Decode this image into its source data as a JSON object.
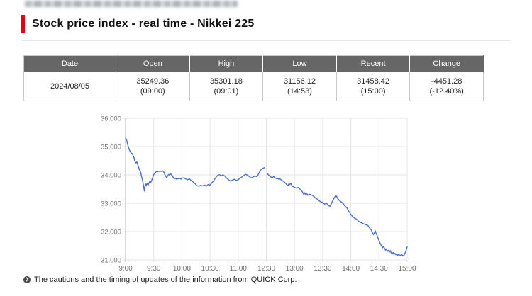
{
  "title": {
    "text": "Stock price index - real time - Nikkei 225",
    "accent_color": "#e60012"
  },
  "table": {
    "columns": [
      "Date",
      "Open",
      "High",
      "Low",
      "Recent",
      "Change"
    ],
    "row": {
      "date": "2024/08/05",
      "open": {
        "value": "35249.36",
        "time": "(09:00)"
      },
      "high": {
        "value": "35301.18",
        "time": "(09:01)"
      },
      "low": {
        "value": "31156.12",
        "time": "(14:53)"
      },
      "recent": {
        "value": "31458.42",
        "time": "(15:00)"
      },
      "change": {
        "value": "-4451.28",
        "pct": "(-12.40%)"
      }
    }
  },
  "chart_data": {
    "type": "line",
    "title": "",
    "xlabel": "",
    "ylabel": "",
    "ylim": [
      31000,
      36000
    ],
    "y_ticks": [
      "36,000",
      "35,000",
      "34,000",
      "33,000",
      "32,000",
      "31,000"
    ],
    "x_ticks": [
      "9:00",
      "9:30",
      "10:00",
      "10:30",
      "11:00",
      "12:30",
      "13:00",
      "13:30",
      "14:00",
      "14:30",
      "15:00"
    ],
    "x_range_minutes": [
      0,
      300
    ],
    "grid": true,
    "legend": "none",
    "line_color": "#4a6fc9",
    "note": "Trading-time axis; lunch break 11:30-12:30 is compressed at the 12:30 tick (gap in line)",
    "series": [
      {
        "name": "morning-session",
        "points": [
          [
            0,
            35290
          ],
          [
            1,
            35260
          ],
          [
            2,
            35120
          ],
          [
            3,
            34980
          ],
          [
            4,
            34890
          ],
          [
            5,
            34820
          ],
          [
            6,
            34780
          ],
          [
            7,
            34750
          ],
          [
            8,
            34690
          ],
          [
            9,
            34610
          ],
          [
            10,
            34480
          ],
          [
            11,
            34420
          ],
          [
            12,
            34460
          ],
          [
            13,
            34360
          ],
          [
            14,
            34270
          ],
          [
            15,
            34160
          ],
          [
            16,
            34100
          ],
          [
            17,
            33950
          ],
          [
            18,
            33820
          ],
          [
            19,
            33650
          ],
          [
            20,
            33430
          ],
          [
            21,
            33700
          ],
          [
            22,
            33610
          ],
          [
            23,
            33710
          ],
          [
            24,
            33640
          ],
          [
            25,
            33720
          ],
          [
            26,
            33780
          ],
          [
            27,
            33740
          ],
          [
            28,
            33830
          ],
          [
            29,
            33920
          ],
          [
            30,
            34010
          ],
          [
            31,
            34060
          ],
          [
            32,
            34090
          ],
          [
            33,
            34120
          ],
          [
            34,
            34110
          ],
          [
            35,
            34130
          ],
          [
            36,
            34120
          ],
          [
            37,
            34140
          ],
          [
            38,
            34120
          ],
          [
            39,
            34130
          ],
          [
            40,
            34140
          ],
          [
            41,
            34080
          ],
          [
            42,
            34000
          ],
          [
            43,
            33940
          ],
          [
            44,
            33900
          ],
          [
            45,
            33980
          ],
          [
            46,
            34020
          ],
          [
            47,
            33990
          ],
          [
            48,
            34040
          ],
          [
            49,
            34010
          ],
          [
            50,
            33950
          ],
          [
            51,
            33900
          ],
          [
            52,
            33860
          ],
          [
            53,
            33890
          ],
          [
            54,
            33850
          ],
          [
            55,
            33880
          ],
          [
            56,
            33860
          ],
          [
            57,
            33890
          ],
          [
            58,
            33870
          ],
          [
            59,
            33850
          ],
          [
            60,
            33880
          ],
          [
            62,
            33900
          ],
          [
            64,
            33860
          ],
          [
            66,
            33830
          ],
          [
            68,
            33860
          ],
          [
            70,
            33800
          ],
          [
            72,
            33750
          ],
          [
            74,
            33690
          ],
          [
            76,
            33620
          ],
          [
            78,
            33600
          ],
          [
            80,
            33630
          ],
          [
            82,
            33610
          ],
          [
            84,
            33640
          ],
          [
            86,
            33600
          ],
          [
            88,
            33660
          ],
          [
            90,
            33640
          ],
          [
            92,
            33720
          ],
          [
            94,
            33800
          ],
          [
            96,
            33900
          ],
          [
            98,
            33980
          ],
          [
            100,
            34010
          ],
          [
            102,
            33970
          ],
          [
            104,
            34000
          ],
          [
            106,
            33950
          ],
          [
            108,
            33880
          ],
          [
            110,
            33820
          ],
          [
            112,
            33780
          ],
          [
            114,
            33820
          ],
          [
            116,
            33850
          ],
          [
            118,
            33800
          ],
          [
            120,
            33830
          ],
          [
            122,
            33880
          ],
          [
            124,
            33930
          ],
          [
            126,
            33980
          ],
          [
            128,
            34020
          ],
          [
            130,
            33990
          ],
          [
            132,
            33940
          ],
          [
            134,
            33890
          ],
          [
            136,
            33930
          ],
          [
            138,
            33960
          ],
          [
            140,
            33940
          ],
          [
            141,
            33990
          ],
          [
            142,
            34060
          ],
          [
            143,
            34120
          ],
          [
            144,
            34170
          ],
          [
            145,
            34210
          ],
          [
            146,
            34230
          ],
          [
            147,
            34245
          ],
          [
            148,
            34255
          ]
        ]
      },
      {
        "name": "afternoon-session",
        "points": [
          [
            151,
            34050
          ],
          [
            152,
            34010
          ],
          [
            153,
            33980
          ],
          [
            154,
            33950
          ],
          [
            155,
            33920
          ],
          [
            156,
            33900
          ],
          [
            157,
            33920
          ],
          [
            158,
            33940
          ],
          [
            159,
            33900
          ],
          [
            160,
            33880
          ],
          [
            161,
            33860
          ],
          [
            162,
            33880
          ],
          [
            163,
            33850
          ],
          [
            164,
            33870
          ],
          [
            166,
            33820
          ],
          [
            168,
            33780
          ],
          [
            170,
            33720
          ],
          [
            172,
            33650
          ],
          [
            173,
            33620
          ],
          [
            174,
            33690
          ],
          [
            175,
            33660
          ],
          [
            176,
            33700
          ],
          [
            177,
            33640
          ],
          [
            178,
            33600
          ],
          [
            179,
            33580
          ],
          [
            180,
            33560
          ],
          [
            182,
            33530
          ],
          [
            184,
            33560
          ],
          [
            186,
            33490
          ],
          [
            188,
            33420
          ],
          [
            190,
            33310
          ],
          [
            191,
            33370
          ],
          [
            192,
            33300
          ],
          [
            193,
            33350
          ],
          [
            194,
            33280
          ],
          [
            196,
            33320
          ],
          [
            198,
            33290
          ],
          [
            200,
            33260
          ],
          [
            202,
            33190
          ],
          [
            204,
            33150
          ],
          [
            206,
            33090
          ],
          [
            208,
            33050
          ],
          [
            210,
            33030
          ],
          [
            212,
            32970
          ],
          [
            214,
            33010
          ],
          [
            216,
            32920
          ],
          [
            218,
            32890
          ],
          [
            220,
            33040
          ],
          [
            222,
            33170
          ],
          [
            224,
            33280
          ],
          [
            225,
            33230
          ],
          [
            226,
            33160
          ],
          [
            228,
            33090
          ],
          [
            230,
            33040
          ],
          [
            232,
            32980
          ],
          [
            234,
            32890
          ],
          [
            236,
            32830
          ],
          [
            238,
            32700
          ],
          [
            240,
            32610
          ],
          [
            242,
            32520
          ],
          [
            244,
            32470
          ],
          [
            246,
            32440
          ],
          [
            248,
            32370
          ],
          [
            250,
            32330
          ],
          [
            252,
            32300
          ],
          [
            254,
            32270
          ],
          [
            256,
            32240
          ],
          [
            258,
            32220
          ],
          [
            260,
            32130
          ],
          [
            262,
            32040
          ],
          [
            263,
            31960
          ],
          [
            264,
            31890
          ],
          [
            265,
            31940
          ],
          [
            266,
            32030
          ],
          [
            267,
            31930
          ],
          [
            268,
            31860
          ],
          [
            269,
            31760
          ],
          [
            270,
            31680
          ],
          [
            271,
            31600
          ],
          [
            272,
            31540
          ],
          [
            273,
            31470
          ],
          [
            274,
            31430
          ],
          [
            275,
            31480
          ],
          [
            276,
            31400
          ],
          [
            277,
            31340
          ],
          [
            278,
            31390
          ],
          [
            279,
            31300
          ],
          [
            280,
            31340
          ],
          [
            281,
            31270
          ],
          [
            282,
            31330
          ],
          [
            283,
            31250
          ],
          [
            284,
            31210
          ],
          [
            285,
            31260
          ],
          [
            286,
            31190
          ],
          [
            287,
            31230
          ],
          [
            288,
            31180
          ],
          [
            289,
            31210
          ],
          [
            290,
            31160
          ],
          [
            291,
            31200
          ],
          [
            292,
            31170
          ],
          [
            293,
            31156
          ],
          [
            294,
            31190
          ],
          [
            295,
            31160
          ],
          [
            296,
            31140
          ],
          [
            297,
            31190
          ],
          [
            298,
            31260
          ],
          [
            299,
            31360
          ],
          [
            300,
            31458
          ]
        ]
      }
    ]
  },
  "footer": {
    "note": "The cautions and the timing of updates of the information from QUICK Corp.",
    "icon": "chevron-right-circle-icon"
  },
  "colors": {
    "accent_red": "#e60012",
    "table_header_bg": "#666666",
    "grid_line": "#e4e4e4",
    "axis_label": "#6e6e6e",
    "chart_line": "#4a6fc9"
  }
}
